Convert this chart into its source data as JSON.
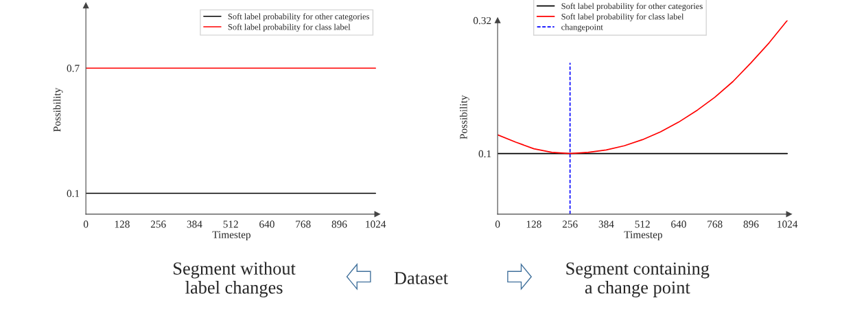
{
  "chart_data": [
    {
      "type": "line",
      "xlabel": "Timestep",
      "ylabel": "Possibility",
      "xlim": [
        0,
        1030
      ],
      "ylim": [
        0,
        1.0
      ],
      "xticks": [
        0,
        128,
        256,
        384,
        512,
        640,
        768,
        896,
        1024
      ],
      "yticks": [
        0.1,
        0.7
      ],
      "legend": "top right",
      "grid": false,
      "series": [
        {
          "name": "Soft label probability for other categories",
          "color": "#000000",
          "x": [
            0,
            1024
          ],
          "values": [
            0.1,
            0.1
          ]
        },
        {
          "name": "Soft label probability for class label",
          "color": "#ff0000",
          "x": [
            0,
            1024
          ],
          "values": [
            0.7,
            0.7
          ]
        }
      ]
    },
    {
      "type": "line",
      "xlabel": "Timestep",
      "ylabel": "Possibility",
      "xlim": [
        0,
        1030
      ],
      "ylim": [
        0,
        0.32
      ],
      "xticks": [
        0,
        128,
        256,
        384,
        512,
        640,
        768,
        896,
        1024
      ],
      "yticks": [
        0.1,
        0.32
      ],
      "legend": "top",
      "grid": false,
      "series": [
        {
          "name": "Soft label probability for other categories",
          "color": "#000000",
          "x": [
            0,
            1024
          ],
          "values": [
            0.1,
            0.1
          ]
        },
        {
          "name": "Soft label probability for class label",
          "color": "#ff0000",
          "x": [
            0,
            64,
            128,
            192,
            256,
            320,
            384,
            448,
            512,
            576,
            640,
            704,
            768,
            832,
            896,
            960,
            1024
          ],
          "values": [
            0.131,
            0.119,
            0.108,
            0.102,
            0.1,
            0.102,
            0.106,
            0.113,
            0.123,
            0.136,
            0.152,
            0.171,
            0.193,
            0.219,
            0.25,
            0.283,
            0.32
          ]
        },
        {
          "name": "changepoint",
          "color": "#0000ff",
          "x": [
            256,
            256
          ],
          "values": [
            0,
            0.25
          ],
          "line_style": "dashed"
        }
      ]
    },
    {
      "type": "other",
      "annotations": [
        "Segment without\nlabel changes",
        "Dataset",
        "Segment containing\na change point"
      ]
    }
  ]
}
